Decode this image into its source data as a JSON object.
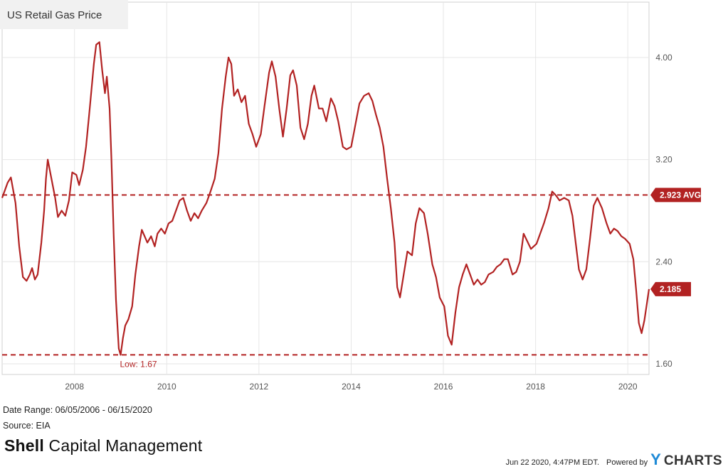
{
  "header": {
    "title": "US Retail Gas Price"
  },
  "footer": {
    "date_range": "Date Range: 06/05/2006 - 06/15/2020",
    "source": "Source: EIA",
    "brand_strong": "Shell",
    "brand_rest": " Capital Management",
    "timestamp": "Jun 22 2020, 4:47PM EDT.",
    "powered_by": "Powered by",
    "logo_y": "Y",
    "logo_rest": "CHARTS"
  },
  "colors": {
    "line": "#b22222",
    "grid": "#e6e6e6",
    "ref": "#b22222"
  },
  "chart_data": {
    "type": "line",
    "title": "US Retail Gas Price",
    "xlabel": "",
    "ylabel": "",
    "x_ticks": [
      "2008",
      "2010",
      "2012",
      "2014",
      "2016",
      "2018",
      "2020"
    ],
    "x_tick_values": [
      2008,
      2010,
      2012,
      2014,
      2016,
      2018,
      2020
    ],
    "y_ticks": [
      "1.60",
      "2.40",
      "3.20",
      "4.00"
    ],
    "y_tick_values": [
      1.6,
      2.4,
      3.2,
      4.0
    ],
    "xlim": [
      2006.43,
      2020.46
    ],
    "ylim": [
      1.6,
      4.3
    ],
    "grid": true,
    "y_axis_side": "right",
    "series": [
      {
        "values": [
          [
            2006.43,
            2.9
          ],
          [
            2006.55,
            3.02
          ],
          [
            2006.62,
            3.06
          ],
          [
            2006.72,
            2.86
          ],
          [
            2006.8,
            2.52
          ],
          [
            2006.88,
            2.28
          ],
          [
            2006.96,
            2.25
          ],
          [
            2007.03,
            2.3
          ],
          [
            2007.08,
            2.35
          ],
          [
            2007.14,
            2.26
          ],
          [
            2007.2,
            2.3
          ],
          [
            2007.28,
            2.55
          ],
          [
            2007.34,
            2.8
          ],
          [
            2007.38,
            3.05
          ],
          [
            2007.42,
            3.2
          ],
          [
            2007.5,
            3.05
          ],
          [
            2007.58,
            2.9
          ],
          [
            2007.64,
            2.75
          ],
          [
            2007.72,
            2.8
          ],
          [
            2007.8,
            2.76
          ],
          [
            2007.88,
            2.88
          ],
          [
            2007.95,
            3.1
          ],
          [
            2008.04,
            3.08
          ],
          [
            2008.1,
            3.0
          ],
          [
            2008.18,
            3.12
          ],
          [
            2008.25,
            3.3
          ],
          [
            2008.33,
            3.6
          ],
          [
            2008.42,
            3.95
          ],
          [
            2008.47,
            4.1
          ],
          [
            2008.54,
            4.12
          ],
          [
            2008.6,
            3.9
          ],
          [
            2008.66,
            3.72
          ],
          [
            2008.7,
            3.85
          ],
          [
            2008.76,
            3.6
          ],
          [
            2008.8,
            3.2
          ],
          [
            2008.85,
            2.6
          ],
          [
            2008.9,
            2.1
          ],
          [
            2008.96,
            1.72
          ],
          [
            2009.0,
            1.67
          ],
          [
            2009.05,
            1.8
          ],
          [
            2009.1,
            1.9
          ],
          [
            2009.17,
            1.95
          ],
          [
            2009.25,
            2.05
          ],
          [
            2009.32,
            2.3
          ],
          [
            2009.4,
            2.52
          ],
          [
            2009.46,
            2.65
          ],
          [
            2009.52,
            2.6
          ],
          [
            2009.58,
            2.55
          ],
          [
            2009.66,
            2.6
          ],
          [
            2009.74,
            2.52
          ],
          [
            2009.8,
            2.62
          ],
          [
            2009.88,
            2.66
          ],
          [
            2009.96,
            2.62
          ],
          [
            2010.04,
            2.7
          ],
          [
            2010.12,
            2.72
          ],
          [
            2010.2,
            2.8
          ],
          [
            2010.28,
            2.88
          ],
          [
            2010.36,
            2.9
          ],
          [
            2010.44,
            2.8
          ],
          [
            2010.52,
            2.72
          ],
          [
            2010.6,
            2.78
          ],
          [
            2010.68,
            2.74
          ],
          [
            2010.76,
            2.8
          ],
          [
            2010.86,
            2.86
          ],
          [
            2010.94,
            2.94
          ],
          [
            2011.04,
            3.05
          ],
          [
            2011.12,
            3.25
          ],
          [
            2011.2,
            3.6
          ],
          [
            2011.28,
            3.85
          ],
          [
            2011.34,
            4.0
          ],
          [
            2011.4,
            3.95
          ],
          [
            2011.46,
            3.7
          ],
          [
            2011.54,
            3.75
          ],
          [
            2011.62,
            3.65
          ],
          [
            2011.7,
            3.7
          ],
          [
            2011.78,
            3.48
          ],
          [
            2011.86,
            3.4
          ],
          [
            2011.94,
            3.3
          ],
          [
            2012.04,
            3.4
          ],
          [
            2012.12,
            3.62
          ],
          [
            2012.22,
            3.88
          ],
          [
            2012.28,
            3.97
          ],
          [
            2012.36,
            3.85
          ],
          [
            2012.44,
            3.6
          ],
          [
            2012.52,
            3.38
          ],
          [
            2012.6,
            3.6
          ],
          [
            2012.68,
            3.86
          ],
          [
            2012.74,
            3.9
          ],
          [
            2012.82,
            3.78
          ],
          [
            2012.9,
            3.45
          ],
          [
            2012.98,
            3.36
          ],
          [
            2013.06,
            3.48
          ],
          [
            2013.14,
            3.7
          ],
          [
            2013.2,
            3.78
          ],
          [
            2013.3,
            3.6
          ],
          [
            2013.38,
            3.6
          ],
          [
            2013.46,
            3.5
          ],
          [
            2013.56,
            3.68
          ],
          [
            2013.64,
            3.62
          ],
          [
            2013.72,
            3.5
          ],
          [
            2013.82,
            3.3
          ],
          [
            2013.9,
            3.28
          ],
          [
            2014.0,
            3.3
          ],
          [
            2014.08,
            3.45
          ],
          [
            2014.18,
            3.64
          ],
          [
            2014.28,
            3.7
          ],
          [
            2014.38,
            3.72
          ],
          [
            2014.46,
            3.66
          ],
          [
            2014.54,
            3.55
          ],
          [
            2014.62,
            3.45
          ],
          [
            2014.7,
            3.3
          ],
          [
            2014.78,
            3.05
          ],
          [
            2014.86,
            2.82
          ],
          [
            2014.94,
            2.55
          ],
          [
            2015.0,
            2.2
          ],
          [
            2015.06,
            2.12
          ],
          [
            2015.14,
            2.3
          ],
          [
            2015.22,
            2.48
          ],
          [
            2015.32,
            2.45
          ],
          [
            2015.4,
            2.7
          ],
          [
            2015.48,
            2.82
          ],
          [
            2015.58,
            2.78
          ],
          [
            2015.66,
            2.62
          ],
          [
            2015.76,
            2.38
          ],
          [
            2015.84,
            2.28
          ],
          [
            2015.92,
            2.12
          ],
          [
            2016.02,
            2.05
          ],
          [
            2016.1,
            1.82
          ],
          [
            2016.18,
            1.75
          ],
          [
            2016.26,
            2.0
          ],
          [
            2016.34,
            2.2
          ],
          [
            2016.42,
            2.3
          ],
          [
            2016.5,
            2.38
          ],
          [
            2016.58,
            2.3
          ],
          [
            2016.66,
            2.22
          ],
          [
            2016.74,
            2.26
          ],
          [
            2016.82,
            2.22
          ],
          [
            2016.9,
            2.24
          ],
          [
            2016.98,
            2.3
          ],
          [
            2017.08,
            2.32
          ],
          [
            2017.16,
            2.36
          ],
          [
            2017.24,
            2.38
          ],
          [
            2017.32,
            2.42
          ],
          [
            2017.4,
            2.42
          ],
          [
            2017.5,
            2.3
          ],
          [
            2017.58,
            2.32
          ],
          [
            2017.66,
            2.4
          ],
          [
            2017.74,
            2.62
          ],
          [
            2017.82,
            2.56
          ],
          [
            2017.9,
            2.5
          ],
          [
            2018.02,
            2.54
          ],
          [
            2018.1,
            2.62
          ],
          [
            2018.18,
            2.7
          ],
          [
            2018.28,
            2.82
          ],
          [
            2018.36,
            2.95
          ],
          [
            2018.44,
            2.92
          ],
          [
            2018.52,
            2.88
          ],
          [
            2018.62,
            2.9
          ],
          [
            2018.72,
            2.88
          ],
          [
            2018.8,
            2.76
          ],
          [
            2018.88,
            2.52
          ],
          [
            2018.94,
            2.34
          ],
          [
            2019.02,
            2.26
          ],
          [
            2019.1,
            2.34
          ],
          [
            2019.18,
            2.58
          ],
          [
            2019.26,
            2.84
          ],
          [
            2019.34,
            2.9
          ],
          [
            2019.44,
            2.82
          ],
          [
            2019.54,
            2.7
          ],
          [
            2019.62,
            2.62
          ],
          [
            2019.7,
            2.66
          ],
          [
            2019.78,
            2.64
          ],
          [
            2019.86,
            2.6
          ],
          [
            2019.94,
            2.58
          ],
          [
            2020.04,
            2.54
          ],
          [
            2020.12,
            2.42
          ],
          [
            2020.18,
            2.18
          ],
          [
            2020.24,
            1.92
          ],
          [
            2020.3,
            1.84
          ],
          [
            2020.36,
            1.94
          ],
          [
            2020.46,
            2.185
          ]
        ]
      }
    ],
    "reference_lines": [
      {
        "value": 2.923,
        "label": "2.923 AVG",
        "style": "dashed"
      },
      {
        "value": 1.67,
        "label": "Low: 1.67",
        "style": "dashed"
      }
    ],
    "last_value_label": "2.185",
    "last_value": 2.185
  }
}
